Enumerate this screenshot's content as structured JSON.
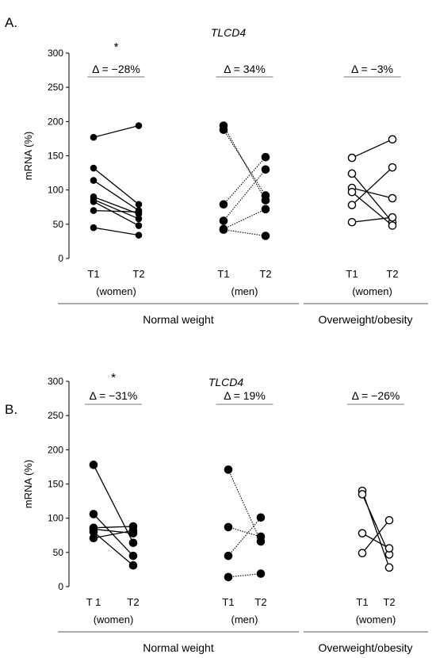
{
  "chart_data": [
    {
      "type": "line",
      "panel": "A.",
      "title": "TLCD4",
      "ylabel": "mRNA (%)",
      "ylim": [
        0,
        300
      ],
      "yticks": [
        0,
        50,
        100,
        150,
        200,
        250,
        300
      ],
      "groups": [
        {
          "t1": "T1",
          "t2": "T2",
          "sub": "(women)",
          "delta": "Δ = −28%",
          "star": "*",
          "style": "solid",
          "marker": "filled",
          "size": "small",
          "pairs": [
            [
              177,
              194
            ],
            [
              132,
              79
            ],
            [
              114,
              70
            ],
            [
              90,
              65
            ],
            [
              86,
              58
            ],
            [
              83,
              48
            ],
            [
              70,
              68
            ],
            [
              45,
              34
            ]
          ]
        },
        {
          "t1": "T1",
          "t2": "T2",
          "sub": "(men)",
          "delta": "Δ = 34%",
          "star": "",
          "style": "dotted",
          "marker": "filled",
          "size": "large",
          "pairs": [
            [
              194,
              85
            ],
            [
              188,
              92
            ],
            [
              79,
              148
            ],
            [
              55,
              130
            ],
            [
              43,
              72
            ],
            [
              42,
              33
            ]
          ]
        },
        {
          "t1": "T1",
          "t2": "T2",
          "sub": "(women)",
          "delta": "Δ = −3%",
          "star": "",
          "style": "solid",
          "marker": "open",
          "size": "large",
          "pairs": [
            [
              147,
              174
            ],
            [
              124,
              53
            ],
            [
              103,
              88
            ],
            [
              97,
              48
            ],
            [
              78,
              133
            ],
            [
              53,
              60
            ]
          ]
        }
      ],
      "sections": [
        "Normal weight",
        "Overweight/obesity"
      ]
    },
    {
      "type": "line",
      "panel": "B.",
      "title": "TLCD4",
      "ylabel": "mRNA (%)",
      "ylim": [
        0,
        300
      ],
      "yticks": [
        0,
        50,
        100,
        150,
        200,
        250,
        300
      ],
      "groups": [
        {
          "t1": "T 1",
          "t2": "T2",
          "sub": "(women)",
          "delta": "Δ = −31%",
          "star": "*",
          "style": "solid",
          "marker": "filled",
          "size": "large",
          "pairs": [
            [
              178,
              64
            ],
            [
              106,
              45
            ],
            [
              86,
              88
            ],
            [
              84,
              78
            ],
            [
              80,
              31
            ],
            [
              71,
              82
            ]
          ]
        },
        {
          "t1": "T1",
          "t2": "T2",
          "sub": "(men)",
          "delta": "Δ = 19%",
          "star": "",
          "style": "dotted",
          "marker": "filled",
          "size": "large",
          "pairs": [
            [
              171,
              66
            ],
            [
              87,
              73
            ],
            [
              45,
              101
            ],
            [
              14,
              19
            ]
          ]
        },
        {
          "t1": "T1",
          "t2": "T2",
          "sub": "(women)",
          "delta": "Δ = −26%",
          "star": "",
          "style": "solid",
          "marker": "open",
          "size": "large",
          "pairs": [
            [
              140,
              28
            ],
            [
              135,
              47
            ],
            [
              78,
              56
            ],
            [
              49,
              97
            ]
          ]
        }
      ],
      "sections": [
        "Normal weight",
        "Overweight/obesity"
      ]
    }
  ]
}
